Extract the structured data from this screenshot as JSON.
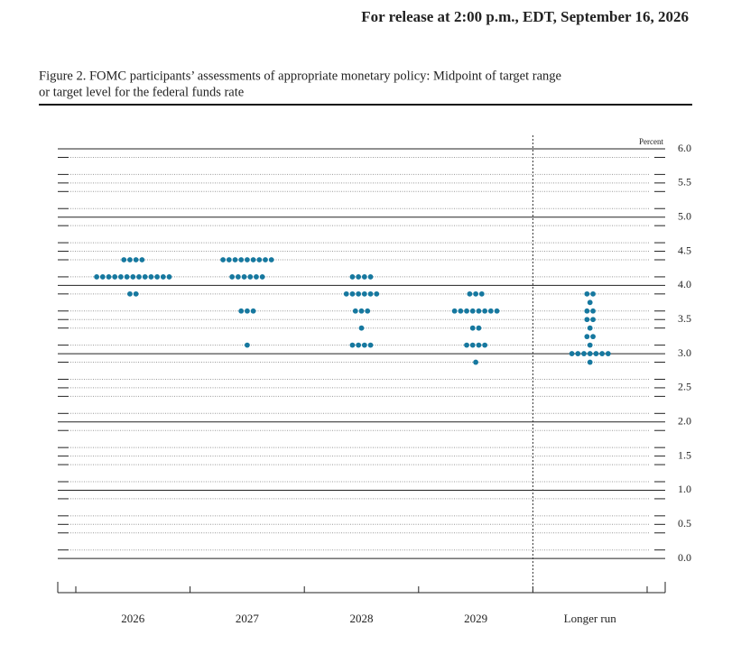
{
  "header": {
    "release": "For release at 2:00 p.m., EDT, September 16, 2026"
  },
  "caption": [
    "Figure 2. FOMC participants’ assessments of appropriate monetary policy: Midpoint of target range",
    "or target level for the federal funds rate"
  ],
  "chart_data": {
    "type": "dot",
    "color": "#16789f",
    "y_label": "Percent",
    "categories": [
      "2026",
      "2027",
      "2028",
      "2029",
      "Longer run"
    ],
    "dots": [
      [
        [
          4.375,
          4
        ],
        [
          4.125,
          13
        ],
        [
          3.875,
          2
        ]
      ],
      [
        [
          4.375,
          9
        ],
        [
          4.125,
          6
        ],
        [
          3.625,
          3
        ],
        [
          3.125,
          1
        ]
      ],
      [
        [
          4.125,
          4
        ],
        [
          3.875,
          6
        ],
        [
          3.625,
          3
        ],
        [
          3.375,
          1
        ],
        [
          3.125,
          4
        ]
      ],
      [
        [
          3.875,
          3
        ],
        [
          3.625,
          8
        ],
        [
          3.375,
          2
        ],
        [
          3.125,
          4
        ],
        [
          2.875,
          1
        ]
      ],
      [
        [
          3.875,
          2
        ],
        [
          3.75,
          1
        ],
        [
          3.625,
          2
        ],
        [
          3.5,
          2
        ],
        [
          3.375,
          1
        ],
        [
          3.25,
          2
        ],
        [
          3.125,
          1
        ],
        [
          3.0,
          7
        ],
        [
          2.875,
          1
        ]
      ]
    ],
    "ylim": [
      -0.5,
      6.0
    ],
    "yticks": [
      {
        "value": 6,
        "label": "6.0"
      },
      5.5,
      {
        "value": 5,
        "label": "5.0"
      },
      4.5,
      {
        "value": 4,
        "label": "4.0"
      },
      3.5,
      {
        "value": 3,
        "label": "3.0"
      },
      2.5,
      {
        "value": 2,
        "label": "2.0"
      },
      1.5,
      {
        "value": 1,
        "label": "1.0"
      },
      0.5,
      {
        "value": 0,
        "label": "0.0"
      }
    ],
    "grid": true
  }
}
